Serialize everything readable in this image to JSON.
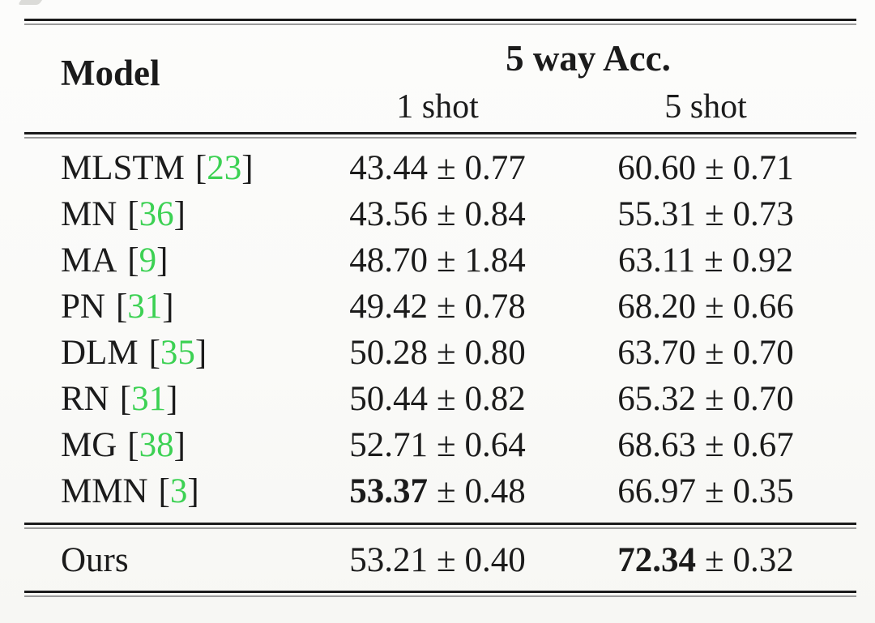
{
  "figure": {
    "header": {
      "model": "Model",
      "group": "5 way Acc.",
      "shot1": "1 shot",
      "shot5": "5 shot"
    },
    "symbols": {
      "pm": "±",
      "lbracket": "[",
      "rbracket": "]"
    },
    "rows": [
      {
        "model": "MLSTM",
        "cite": "23",
        "v1": "43.44",
        "e1": "0.77",
        "v5": "60.60",
        "e5": "0.71",
        "b1": false,
        "b5": false
      },
      {
        "model": "MN",
        "cite": "36",
        "v1": "43.56",
        "e1": "0.84",
        "v5": "55.31",
        "e5": "0.73",
        "b1": false,
        "b5": false
      },
      {
        "model": "MA",
        "cite": "9",
        "v1": "48.70",
        "e1": "1.84",
        "v5": "63.11",
        "e5": "0.92",
        "b1": false,
        "b5": false
      },
      {
        "model": "PN",
        "cite": "31",
        "v1": "49.42",
        "e1": "0.78",
        "v5": "68.20",
        "e5": "0.66",
        "b1": false,
        "b5": false
      },
      {
        "model": "DLM",
        "cite": "35",
        "v1": "50.28",
        "e1": "0.80",
        "v5": "63.70",
        "e5": "0.70",
        "b1": false,
        "b5": false
      },
      {
        "model": "RN",
        "cite": "31",
        "v1": "50.44",
        "e1": "0.82",
        "v5": "65.32",
        "e5": "0.70",
        "b1": false,
        "b5": false
      },
      {
        "model": "MG",
        "cite": "38",
        "v1": "52.71",
        "e1": "0.64",
        "v5": "68.63",
        "e5": "0.67",
        "b1": false,
        "b5": false
      },
      {
        "model": "MMN",
        "cite": "3",
        "v1": "53.37",
        "e1": "0.48",
        "v5": "66.97",
        "e5": "0.35",
        "b1": true,
        "b5": false
      }
    ],
    "ours_row": {
      "model": "Ours",
      "v1": "53.21",
      "e1": "0.40",
      "v5": "72.34",
      "e5": "0.32",
      "b1": false,
      "b5": true
    },
    "colors": {
      "citation": "#3cd153",
      "text": "#1b1b1b",
      "rule_dark": "#1b1b1b",
      "rule_light": "#9a9a9a",
      "background": "#fafaf8"
    }
  }
}
